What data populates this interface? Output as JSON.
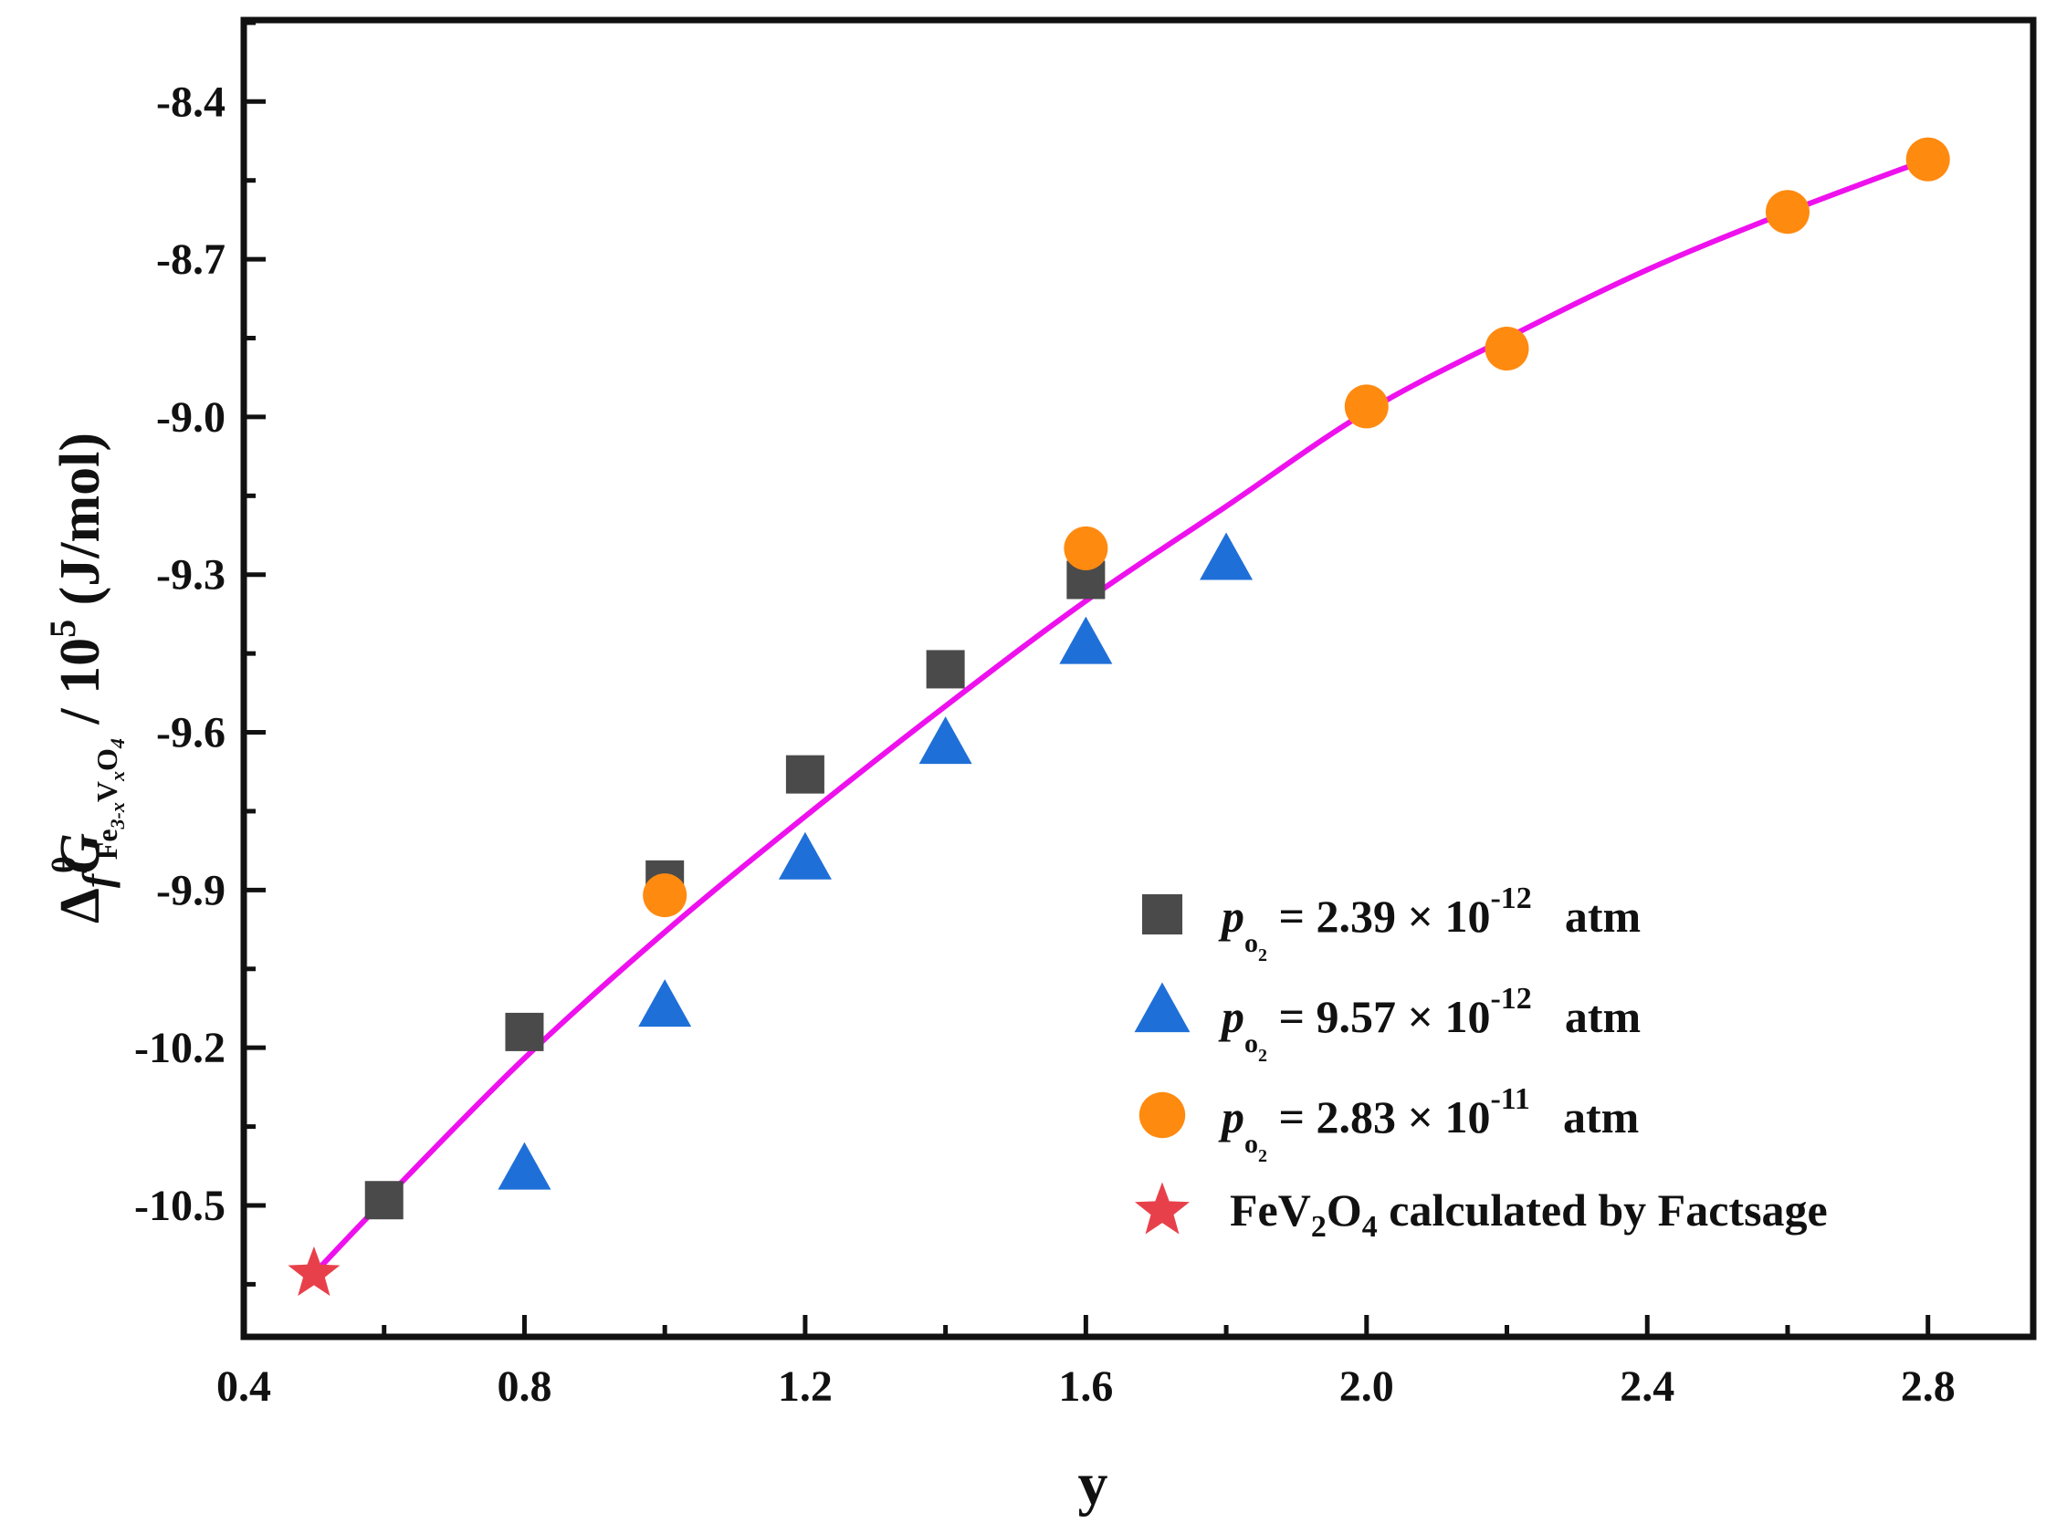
{
  "chart_data": {
    "type": "scatter",
    "xlabel": "y",
    "ylabel": {
      "delta": "Δ",
      "f": "f",
      "G": "G",
      "theta": "θ",
      "sub_fe": "Fe",
      "sub_3x": "3-x",
      "sub_v": "V",
      "sub_x": "x",
      "sub_o": "O",
      "sub_4": "4",
      "slash_ten": " / 10",
      "exp5": "5",
      "units": " (J/mol)"
    },
    "xlim": [
      0.4,
      2.95
    ],
    "ylim": [
      -10.75,
      -8.245
    ],
    "xticks": [
      0.4,
      0.8,
      1.2,
      1.6,
      2.0,
      2.4,
      2.8
    ],
    "xtick_labels": [
      "0.4",
      "0.8",
      "1.2",
      "1.6",
      "2.0",
      "2.4",
      "2.8"
    ],
    "yticks": [
      -8.4,
      -8.7,
      -9.0,
      -9.3,
      -9.6,
      -9.9,
      -10.2,
      -10.5
    ],
    "ytick_labels": [
      "-8.4",
      "-8.7",
      "-9.0",
      "-9.3",
      "-9.6",
      "-9.9",
      "-10.2",
      "-10.5"
    ],
    "series": [
      {
        "name": "p_O2 = 2.39 × 10^-12 atm",
        "marker": "square",
        "color": "#4a4a4a",
        "points": [
          [
            0.6,
            -10.49
          ],
          [
            0.8,
            -10.17
          ],
          [
            1.0,
            -9.88
          ],
          [
            1.2,
            -9.68
          ],
          [
            1.4,
            -9.48
          ],
          [
            1.6,
            -9.31
          ]
        ]
      },
      {
        "name": "p_O2 = 9.57 × 10^-12 atm",
        "marker": "triangle",
        "color": "#1f6fd8",
        "points": [
          [
            0.8,
            -10.43
          ],
          [
            1.0,
            -10.12
          ],
          [
            1.2,
            -9.84
          ],
          [
            1.4,
            -9.62
          ],
          [
            1.6,
            -9.43
          ],
          [
            1.8,
            -9.27
          ]
        ]
      },
      {
        "name": "p_O2 = 2.83 × 10^-11 atm",
        "marker": "circle",
        "color": "#ff8a10",
        "points": [
          [
            1.0,
            -9.91
          ],
          [
            1.6,
            -9.25
          ],
          [
            2.0,
            -8.98
          ],
          [
            2.2,
            -8.87
          ],
          [
            2.6,
            -8.61
          ],
          [
            2.8,
            -8.51
          ]
        ]
      },
      {
        "name": "FeV2O4 calculated by Factsage",
        "marker": "star",
        "color": "#e8404a",
        "points": [
          [
            0.5,
            -10.63
          ]
        ]
      }
    ],
    "fit_curve": {
      "color": "#ee11ee",
      "points": [
        [
          0.5,
          -10.63
        ],
        [
          0.6,
          -10.49
        ],
        [
          0.8,
          -10.22
        ],
        [
          1.0,
          -9.98
        ],
        [
          1.2,
          -9.76
        ],
        [
          1.4,
          -9.55
        ],
        [
          1.6,
          -9.35
        ],
        [
          1.8,
          -9.17
        ],
        [
          2.0,
          -8.99
        ],
        [
          2.2,
          -8.85
        ],
        [
          2.4,
          -8.72
        ],
        [
          2.6,
          -8.61
        ],
        [
          2.8,
          -8.51
        ]
      ]
    },
    "legend": {
      "position": "bottom-right",
      "entries": [
        {
          "marker": "square",
          "p": "p",
          "sub_o": "o",
          "sub_2": "2",
          "eq": " = 2.39 × 10",
          "exp": "-12",
          "unit": "atm"
        },
        {
          "marker": "triangle",
          "p": "p",
          "sub_o": "o",
          "sub_2": "2",
          "eq": " = 9.57 × 10",
          "exp": "-12",
          "unit": "atm"
        },
        {
          "marker": "circle",
          "p": "p",
          "sub_o": "o",
          "sub_2": "2",
          "eq": " = 2.83 × 10",
          "exp": "-11",
          "unit": "atm"
        },
        {
          "marker": "star",
          "fe": "FeV",
          "sub_2": "2",
          "o": "O",
          "sub_4": "4",
          "rest": " calculated by Factsage"
        }
      ]
    }
  }
}
